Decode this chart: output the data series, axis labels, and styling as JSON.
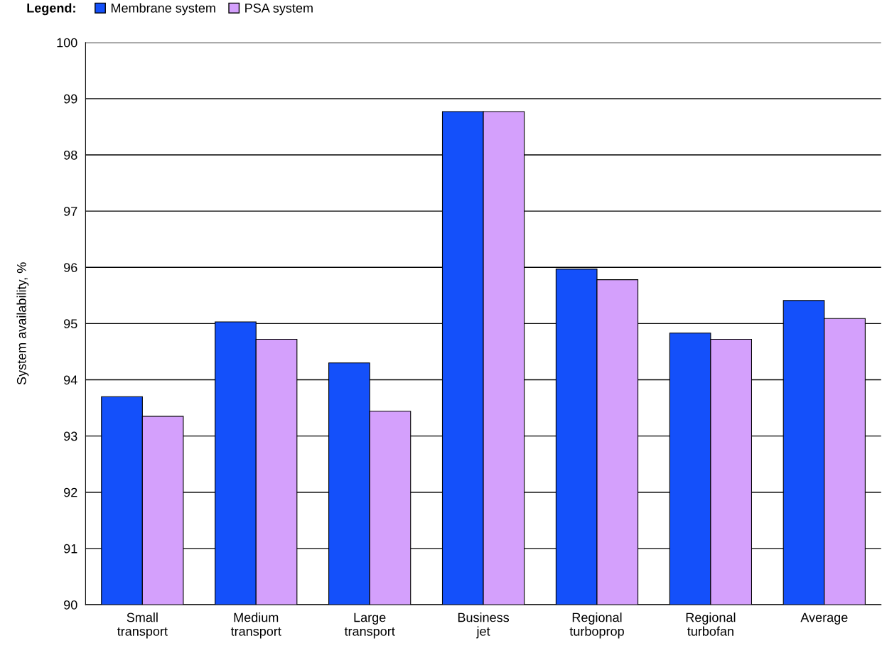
{
  "chart_data": {
    "type": "bar",
    "ylabel": "System availability, %",
    "legend_title": "Legend:",
    "categories": [
      "Small\ntransport",
      "Medium\ntransport",
      "Large\ntransport",
      "Business\njet",
      "Regional\nturboprop",
      "Regional\nturbofan",
      "Average"
    ],
    "series": [
      {
        "name": "Membrane system",
        "color": "#1450fa",
        "values": [
          93.7,
          95.03,
          94.3,
          98.77,
          95.97,
          94.83,
          95.41
        ]
      },
      {
        "name": "PSA system",
        "color": "#d4a0fc",
        "values": [
          93.35,
          94.72,
          93.44,
          98.77,
          95.78,
          94.72,
          95.09
        ]
      }
    ],
    "ylim": [
      90,
      100
    ],
    "yticks": [
      90,
      91,
      92,
      93,
      94,
      95,
      96,
      97,
      98,
      99,
      100
    ],
    "grid": "y",
    "legend": "top left"
  }
}
